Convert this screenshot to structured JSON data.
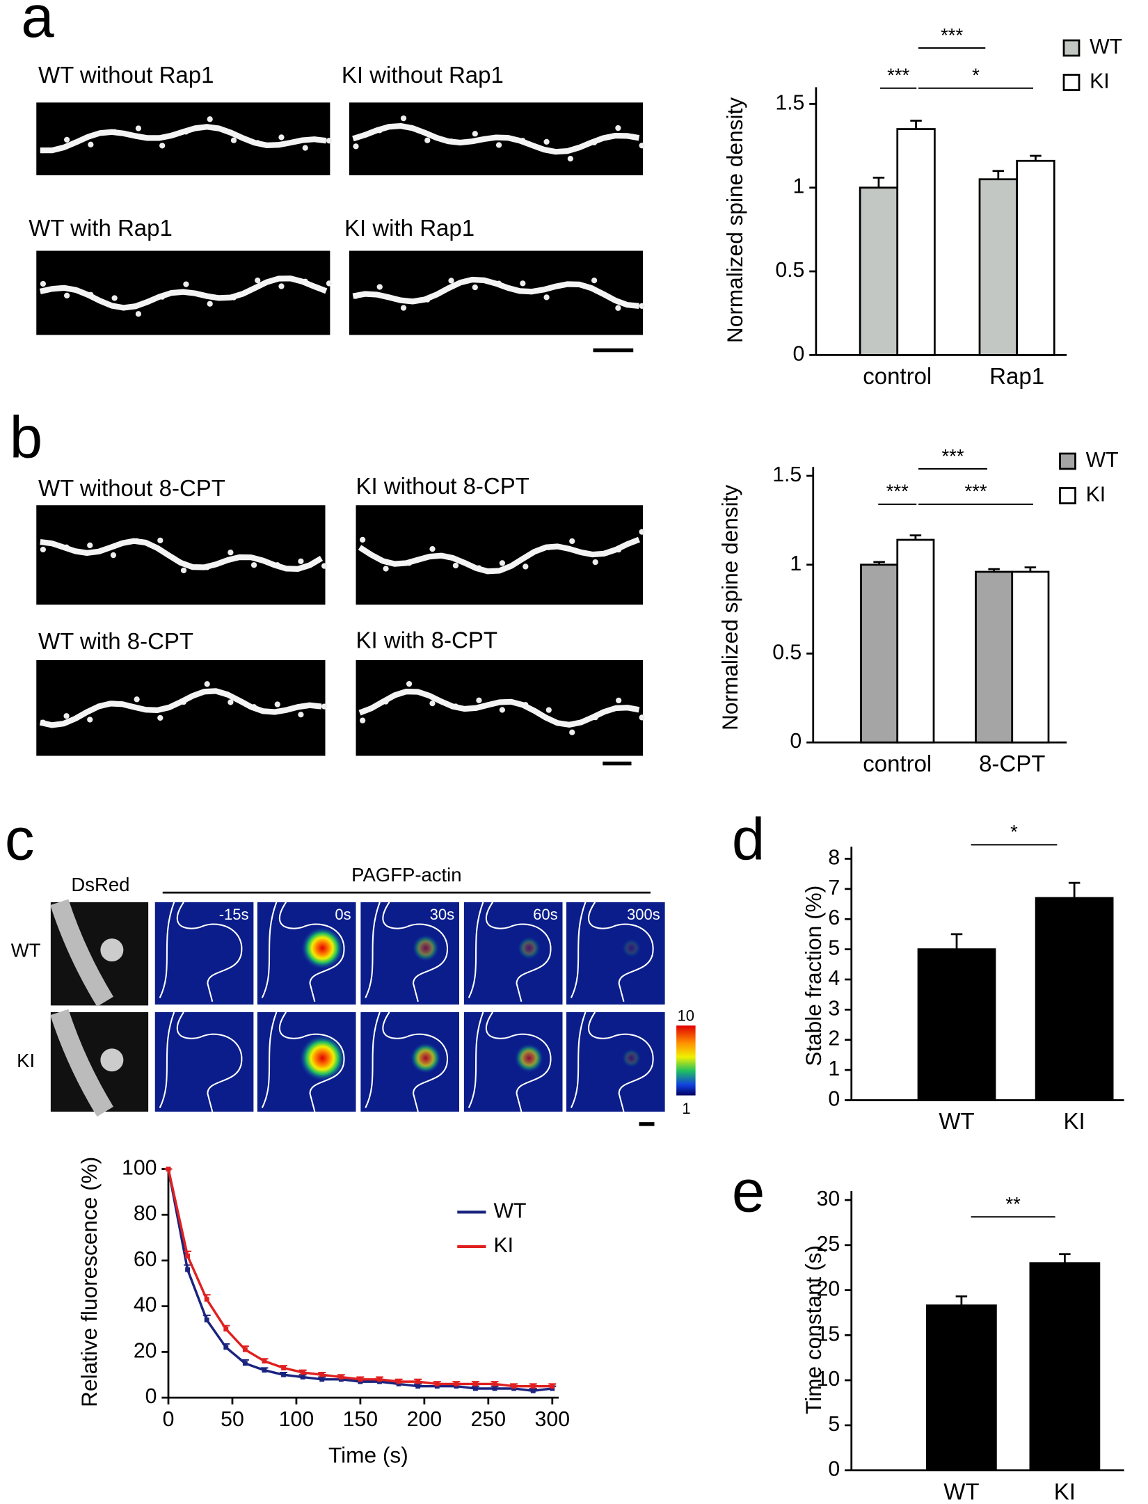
{
  "figure": {
    "panel_letters": [
      "a",
      "b",
      "c",
      "d",
      "e"
    ],
    "a_images": [
      "WT without Rap1",
      "KI without Rap1",
      "WT with Rap1",
      "KI with Rap1"
    ],
    "b_images": [
      "WT without 8-CPT",
      "KI without 8-CPT",
      "WT with 8-CPT",
      "KI with 8-CPT"
    ],
    "c_images": {
      "dsred": "DsRed",
      "pagfp": "PAGFP-actin",
      "times": [
        "-15s",
        "0s",
        "30s",
        "60s",
        "300s"
      ],
      "rows": [
        "WT",
        "KI"
      ],
      "colorbar": [
        "10",
        "1"
      ]
    }
  },
  "chart_data": [
    {
      "type": "bar",
      "ylabel": "Normalized spine density",
      "categories": [
        "control",
        "Rap1"
      ],
      "series": [
        {
          "name": "WT",
          "color": "#c3c7c3",
          "values": [
            1.0,
            1.05
          ],
          "errors": [
            0.06,
            0.05
          ]
        },
        {
          "name": "KI",
          "color": "#ffffff",
          "values": [
            1.35,
            1.16
          ],
          "errors": [
            0.05,
            0.03
          ]
        }
      ],
      "ylim": [
        0,
        1.6
      ],
      "yticks": [
        0,
        0.5,
        1,
        1.5
      ],
      "significance": [
        "***",
        "***",
        "*"
      ]
    },
    {
      "type": "bar",
      "ylabel": "Normalized spine density",
      "categories": [
        "control",
        "8-CPT"
      ],
      "series": [
        {
          "name": "WT",
          "color": "#a5a5a5",
          "values": [
            1.0,
            0.96
          ],
          "errors": [
            0.015,
            0.015
          ]
        },
        {
          "name": "KI",
          "color": "#ffffff",
          "values": [
            1.14,
            0.96
          ],
          "errors": [
            0.025,
            0.025
          ]
        }
      ],
      "ylim": [
        0,
        1.55
      ],
      "yticks": [
        0,
        0.5,
        1,
        1.5
      ],
      "significance": [
        "***",
        "***",
        "***"
      ]
    },
    {
      "type": "line",
      "xlabel": "Time (s)",
      "ylabel": "Relative fluorescence (%)",
      "x": [
        0,
        15,
        30,
        45,
        60,
        75,
        90,
        105,
        120,
        135,
        150,
        165,
        180,
        195,
        210,
        225,
        240,
        255,
        270,
        285,
        300
      ],
      "series": [
        {
          "name": "WT",
          "color": "#1a237e",
          "values": [
            100,
            56,
            34,
            22,
            15,
            12,
            10,
            9,
            8,
            8,
            7,
            7,
            6,
            5,
            5,
            5,
            4,
            4,
            4,
            3,
            4
          ],
          "errors": [
            0,
            2,
            2,
            1.5,
            1.5,
            1,
            1,
            1,
            1,
            1,
            1,
            1,
            1,
            1,
            1,
            1,
            1,
            1,
            1,
            1,
            1
          ]
        },
        {
          "name": "KI",
          "color": "#e02020",
          "values": [
            100,
            62,
            43,
            30,
            21,
            16,
            13,
            11,
            10,
            9,
            8,
            8,
            7,
            7,
            6,
            6,
            6,
            6,
            5,
            5,
            5
          ],
          "errors": [
            0,
            2,
            2,
            1.5,
            1.5,
            1,
            1,
            1,
            1,
            1,
            1,
            1,
            1,
            1,
            1,
            1,
            1,
            1,
            1,
            1,
            1
          ]
        }
      ],
      "xlim": [
        0,
        305
      ],
      "xticks": [
        0,
        50,
        100,
        150,
        200,
        250,
        300
      ],
      "ylim": [
        0,
        100
      ],
      "yticks": [
        0,
        20,
        40,
        60,
        80,
        100
      ]
    },
    {
      "type": "bar",
      "ylabel": "Stable fraction (%)",
      "categories": [
        "WT",
        "KI"
      ],
      "series": [
        {
          "name": "WT",
          "color": "#000000",
          "values": [
            5.0,
            6.7
          ],
          "errors": [
            0.5,
            0.5
          ]
        }
      ],
      "ylim": [
        0,
        8.4
      ],
      "yticks": [
        0,
        1,
        2,
        3,
        4,
        5,
        6,
        7,
        8
      ],
      "significance": [
        "*"
      ]
    },
    {
      "type": "bar",
      "ylabel": "Time constant (s)",
      "categories": [
        "WT",
        "KI"
      ],
      "series": [
        {
          "name": "WT",
          "color": "#000000",
          "values": [
            18.3,
            23.0
          ],
          "errors": [
            1.0,
            1.0
          ]
        }
      ],
      "ylim": [
        0,
        31
      ],
      "yticks": [
        0,
        5,
        10,
        15,
        20,
        25,
        30
      ],
      "significance": [
        "**"
      ]
    }
  ]
}
